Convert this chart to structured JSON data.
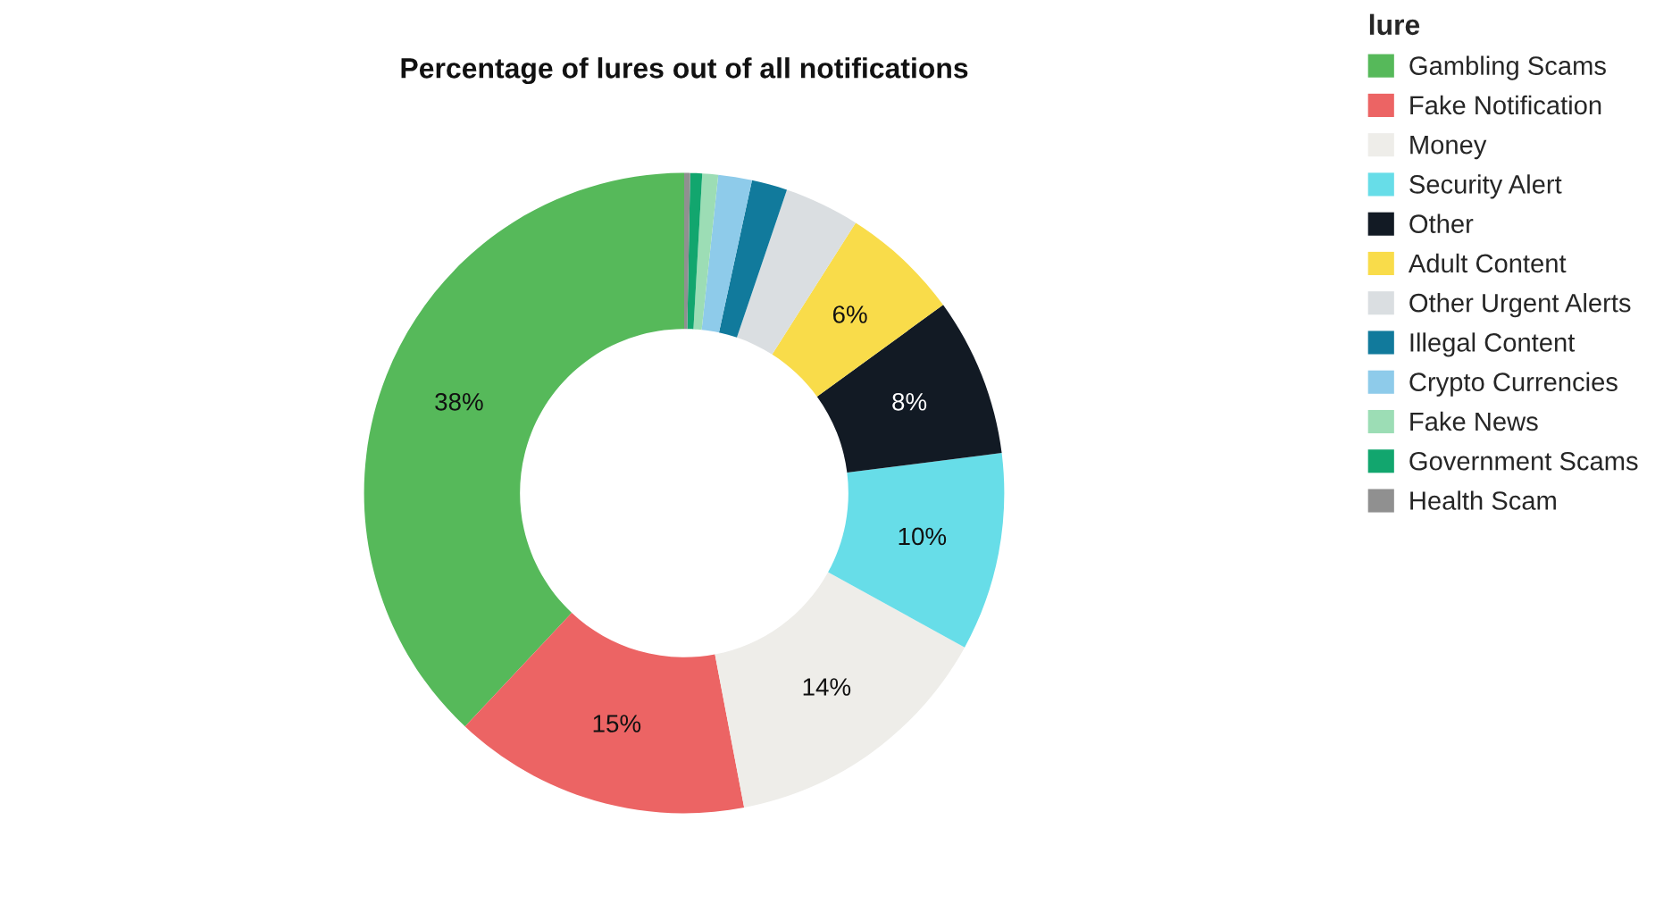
{
  "chart_data": {
    "type": "donut",
    "title": "Percentage of lures out of all notifications",
    "legend_title": "lure",
    "categories": [
      "Gambling Scams",
      "Fake Notification",
      "Money",
      "Security Alert",
      "Other",
      "Adult Content",
      "Other Urgent Alerts",
      "Illegal Content",
      "Crypto Currencies",
      "Fake News",
      "Government Scams",
      "Health Scam"
    ],
    "values": [
      38,
      15,
      14,
      10,
      8,
      6,
      3.8,
      1.8,
      1.7,
      0.8,
      0.6,
      0.3
    ],
    "colors": [
      "#56b95a",
      "#ec6464",
      "#eeede9",
      "#67dde8",
      "#121a24",
      "#f9dc4a",
      "#dadee1",
      "#117a9c",
      "#8ecbea",
      "#9cddb5",
      "#12a66e",
      "#909090"
    ],
    "value_labels": [
      "38%",
      "15%",
      "14%",
      "10%",
      "8%",
      "6%",
      null,
      null,
      null,
      null,
      null,
      null
    ],
    "legend": "top right"
  }
}
